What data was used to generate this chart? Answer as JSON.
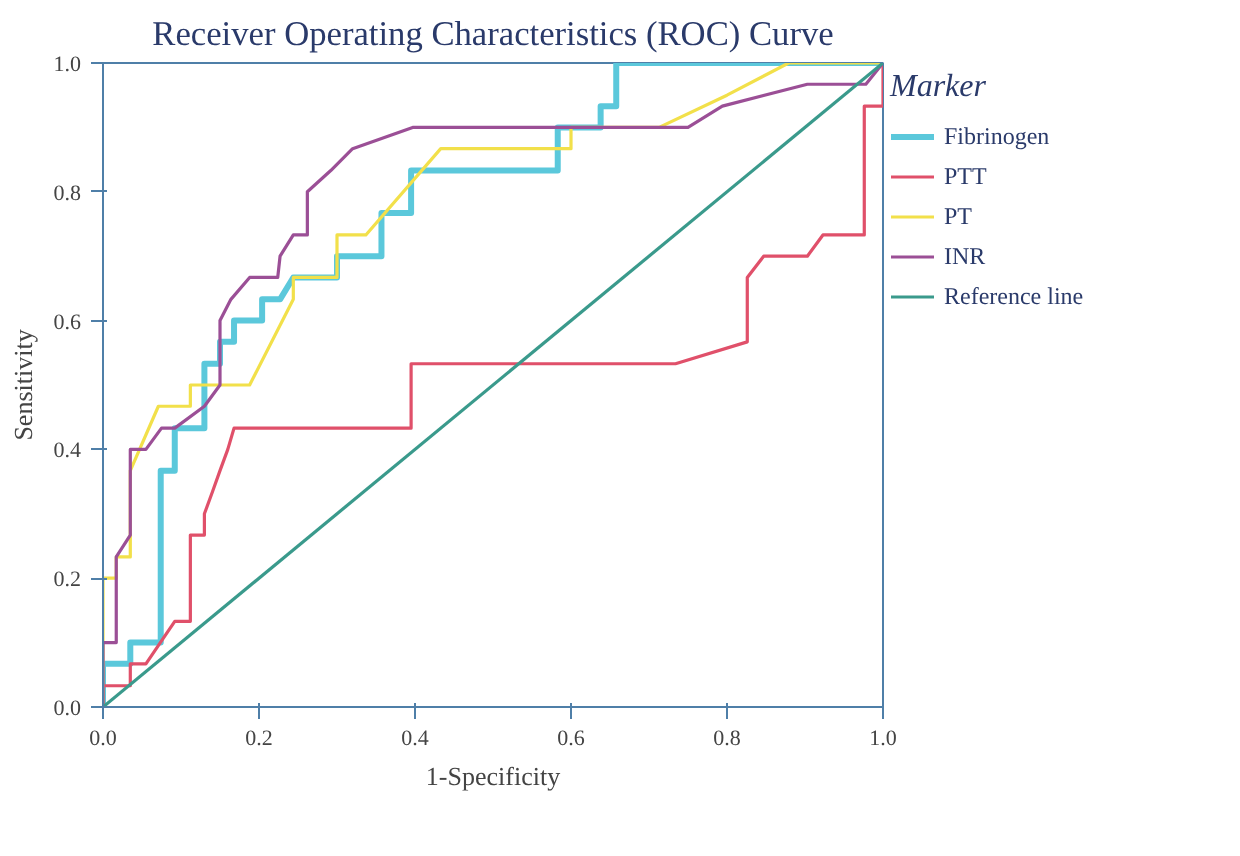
{
  "chart_data": {
    "type": "line",
    "title": "Receiver Operating Characteristics (ROC) Curve",
    "xlabel": "1-Specificity",
    "ylabel": "Sensitivity",
    "legend_title": "Marker",
    "legend": "right",
    "grid": false,
    "line_style": "solid",
    "xlim": [
      0,
      1
    ],
    "ylim": [
      0,
      1
    ],
    "xticks": [
      {
        "value": 0,
        "label": "0.0"
      },
      0.2,
      0.4,
      0.6,
      0.8,
      {
        "value": 1,
        "label": "1.0"
      }
    ],
    "yticks": [
      {
        "value": 0,
        "label": "0.0"
      },
      0.2,
      0.4,
      0.6,
      0.8,
      {
        "value": 1,
        "label": "1.0"
      }
    ],
    "series": [
      {
        "name": "Fibrinogen",
        "color": "#5bc8db",
        "x": [
          0,
          0,
          0.035,
          0.035,
          0.074,
          0.074,
          0.092,
          0.092,
          0.13,
          0.13,
          0.15,
          0.15,
          0.168,
          0.168,
          0.204,
          0.204,
          0.227,
          0.244,
          0.3,
          0.3,
          0.357,
          0.357,
          0.395,
          0.395,
          0.583,
          0.583,
          0.638,
          0.638,
          0.658,
          0.658,
          1
        ],
        "values": [
          0,
          0.067,
          0.067,
          0.1,
          0.1,
          0.367,
          0.367,
          0.433,
          0.433,
          0.533,
          0.533,
          0.567,
          0.567,
          0.6,
          0.6,
          0.633,
          0.633,
          0.667,
          0.667,
          0.7,
          0.7,
          0.767,
          0.767,
          0.833,
          0.833,
          0.9,
          0.9,
          0.933,
          0.933,
          1,
          1
        ]
      },
      {
        "name": "PTT",
        "color": "#e0506a",
        "x": [
          0,
          0,
          0.035,
          0.035,
          0.055,
          0.092,
          0.112,
          0.112,
          0.13,
          0.13,
          0.14,
          0.15,
          0.16,
          0.168,
          0.395,
          0.395,
          0.734,
          0.826,
          0.826,
          0.847,
          0.903,
          0.923,
          0.976,
          0.976,
          1,
          1
        ],
        "values": [
          0,
          0.033,
          0.033,
          0.067,
          0.067,
          0.133,
          0.133,
          0.267,
          0.267,
          0.3,
          0.333,
          0.367,
          0.4,
          0.433,
          0.433,
          0.533,
          0.533,
          0.567,
          0.667,
          0.7,
          0.7,
          0.733,
          0.733,
          0.933,
          0.933,
          1
        ]
      },
      {
        "name": "PT",
        "color": "#f2e04a",
        "x": [
          0,
          0,
          0.017,
          0.017,
          0.035,
          0.035,
          0.071,
          0.112,
          0.112,
          0.188,
          0.244,
          0.244,
          0.3,
          0.3,
          0.337,
          0.433,
          0.6,
          0.6,
          0.713,
          0.8,
          0.879,
          1
        ],
        "values": [
          0,
          0.2,
          0.2,
          0.233,
          0.233,
          0.367,
          0.467,
          0.467,
          0.5,
          0.5,
          0.633,
          0.667,
          0.667,
          0.733,
          0.733,
          0.867,
          0.867,
          0.9,
          0.9,
          0.95,
          1,
          1
        ]
      },
      {
        "name": "INR",
        "color": "#9b4f96",
        "x": [
          0,
          0,
          0.017,
          0.017,
          0.035,
          0.035,
          0.055,
          0.075,
          0.092,
          0.13,
          0.15,
          0.15,
          0.164,
          0.188,
          0.224,
          0.227,
          0.244,
          0.262,
          0.262,
          0.292,
          0.32,
          0.397,
          0.75,
          0.794,
          0.903,
          0.978,
          1
        ],
        "values": [
          0,
          0.1,
          0.1,
          0.233,
          0.267,
          0.4,
          0.4,
          0.433,
          0.433,
          0.467,
          0.5,
          0.6,
          0.633,
          0.667,
          0.667,
          0.7,
          0.733,
          0.733,
          0.8,
          0.833,
          0.867,
          0.9,
          0.9,
          0.933,
          0.967,
          0.967,
          1
        ]
      },
      {
        "name": "Reference line",
        "color": "#3a9a8c",
        "x": [
          0,
          1
        ],
        "values": [
          0,
          1
        ]
      }
    ]
  }
}
